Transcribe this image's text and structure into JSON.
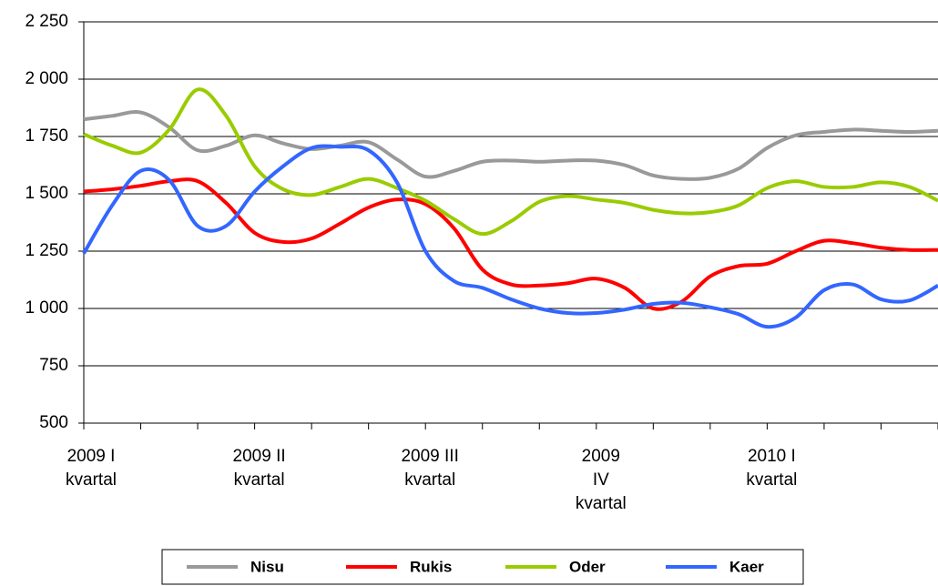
{
  "chart_data": {
    "type": "line",
    "categories": [
      "2009 I\nkvartal",
      null,
      null,
      null,
      null,
      null,
      "2009 II\nkvartal",
      null,
      null,
      null,
      null,
      null,
      "2009 III\nkvartal",
      null,
      null,
      null,
      null,
      null,
      "2009\nIV\nkvartal",
      null,
      null,
      null,
      null,
      null,
      "2010 I\nkvartal",
      null,
      null,
      null,
      null,
      null,
      null
    ],
    "series": [
      {
        "name": "Nisu",
        "color": "#999999",
        "values": [
          1825,
          1840,
          1855,
          1790,
          1690,
          1710,
          1755,
          1720,
          1695,
          1710,
          1725,
          1650,
          1575,
          1600,
          1640,
          1645,
          1640,
          1645,
          1645,
          1625,
          1580,
          1565,
          1570,
          1610,
          1700,
          1755,
          1770,
          1780,
          1775,
          1770,
          1775
        ]
      },
      {
        "name": "Rukis",
        "color": "#ff0000",
        "values": [
          1510,
          1520,
          1535,
          1555,
          1555,
          1460,
          1330,
          1290,
          1305,
          1370,
          1440,
          1475,
          1455,
          1350,
          1170,
          1105,
          1100,
          1110,
          1130,
          1090,
          1000,
          1030,
          1140,
          1185,
          1195,
          1250,
          1295,
          1285,
          1265,
          1255,
          1255
        ]
      },
      {
        "name": "Oder",
        "color": "#99cc00",
        "values": [
          1760,
          1710,
          1680,
          1780,
          1955,
          1840,
          1620,
          1520,
          1495,
          1530,
          1565,
          1525,
          1470,
          1390,
          1325,
          1380,
          1465,
          1490,
          1475,
          1460,
          1430,
          1415,
          1420,
          1450,
          1525,
          1555,
          1530,
          1530,
          1550,
          1530,
          1470
        ]
      },
      {
        "name": "Kaer",
        "color": "#3366ff",
        "values": [
          1240,
          1450,
          1600,
          1560,
          1360,
          1360,
          1510,
          1620,
          1700,
          1705,
          1690,
          1550,
          1250,
          1120,
          1090,
          1040,
          1000,
          980,
          980,
          995,
          1020,
          1025,
          1005,
          975,
          920,
          960,
          1080,
          1105,
          1040,
          1035,
          1100
        ]
      }
    ],
    "ylim": [
      500,
      2250
    ],
    "yticks": [
      500,
      750,
      {
        "value": 1000,
        "label": "1 000"
      },
      {
        "value": 1250,
        "label": "1 250"
      },
      {
        "value": 1500,
        "label": "1 500"
      },
      {
        "value": 1750,
        "label": "1 750"
      },
      {
        "value": 2000,
        "label": "2 000"
      },
      {
        "value": 2250,
        "label": "2 250"
      }
    ],
    "grid": true,
    "legend": "bottom"
  }
}
